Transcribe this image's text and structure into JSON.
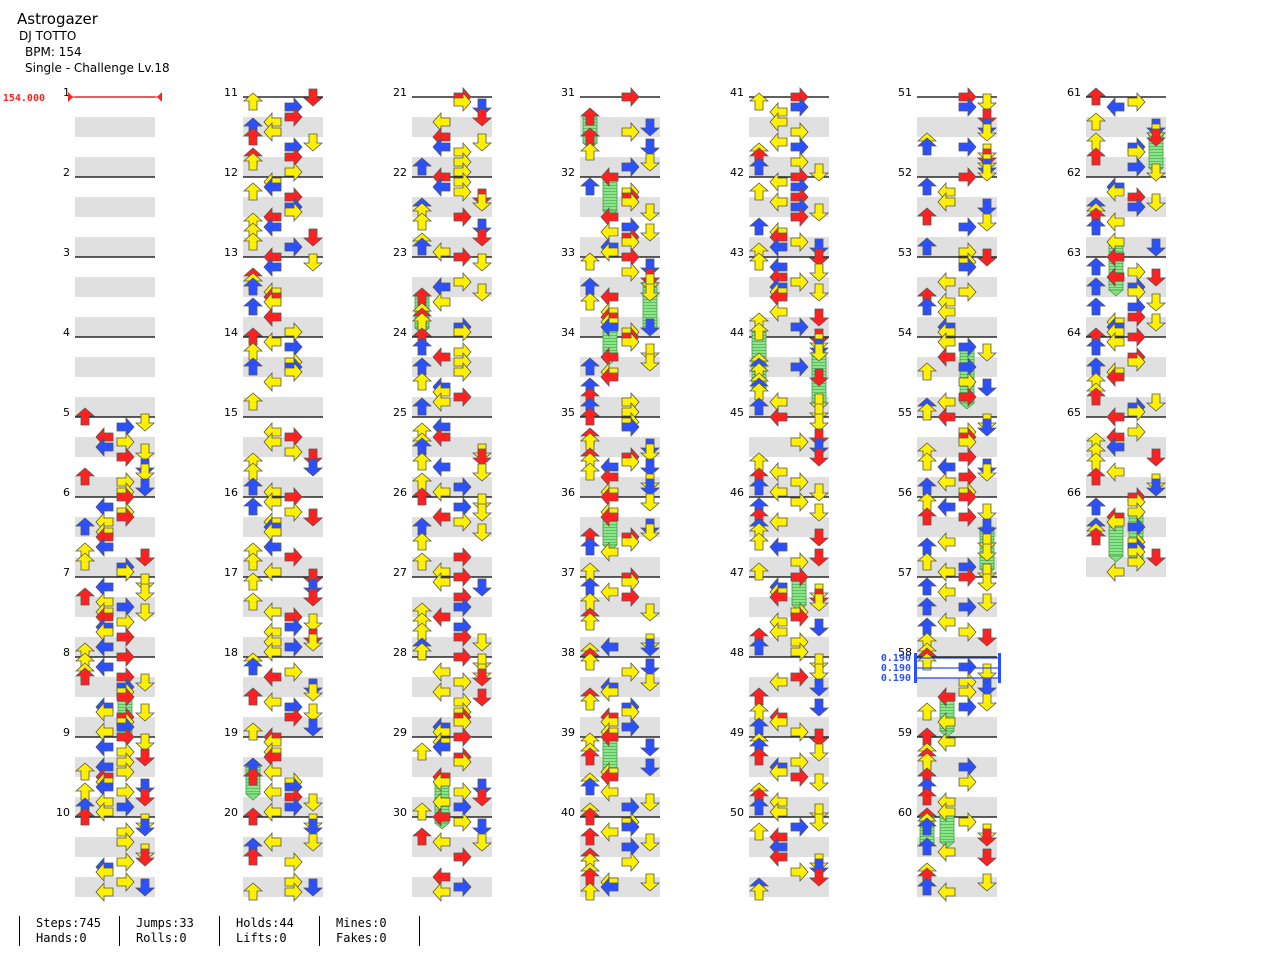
{
  "song": {
    "title": "Astrogazer",
    "artist": "DJ TOTTO",
    "bpm": "BPM: 154",
    "difficulty": "Single - Challenge Lv.18"
  },
  "colors": {
    "red": "#ff2020",
    "blue": "#2b50ff",
    "yellow": "#fff000",
    "purple": "#b43cff",
    "magenta": "#ff33dd",
    "hold": "#7ee07e",
    "stripe": "#e0e0e0"
  },
  "columns": [
    {
      "measures": [
        "1",
        "2",
        "3",
        "4",
        "5",
        "6",
        "7",
        "8",
        "9",
        "10"
      ]
    },
    {
      "measures": [
        "11",
        "12",
        "13",
        "14",
        "15",
        "16",
        "17",
        "18",
        "19",
        "20"
      ]
    },
    {
      "measures": [
        "21",
        "22",
        "23",
        "24",
        "25",
        "26",
        "27",
        "28",
        "29",
        "30"
      ]
    },
    {
      "measures": [
        "31",
        "32",
        "33",
        "34",
        "35",
        "36",
        "37",
        "38",
        "39",
        "40"
      ]
    },
    {
      "measures": [
        "41",
        "42",
        "43",
        "44",
        "45",
        "46",
        "47",
        "48",
        "49",
        "50"
      ]
    },
    {
      "measures": [
        "51",
        "52",
        "53",
        "54",
        "55",
        "56",
        "57",
        "58",
        "59",
        "60"
      ]
    },
    {
      "measures": [
        "61",
        "62",
        "63",
        "64",
        "65",
        "66"
      ]
    }
  ],
  "bpm_change": {
    "value": "154.000",
    "measure": "1"
  },
  "stops": [
    {
      "value": "0.190"
    },
    {
      "value": "0.190"
    },
    {
      "value": "0.190"
    }
  ],
  "stats": {
    "steps": "Steps:745",
    "hands": "Hands:0",
    "jumps": "Jumps:33",
    "rolls": "Rolls:0",
    "holds": "Holds:44",
    "lifts": "Lifts:0",
    "mines": "Mines:0",
    "fakes": "Fakes:0"
  }
}
